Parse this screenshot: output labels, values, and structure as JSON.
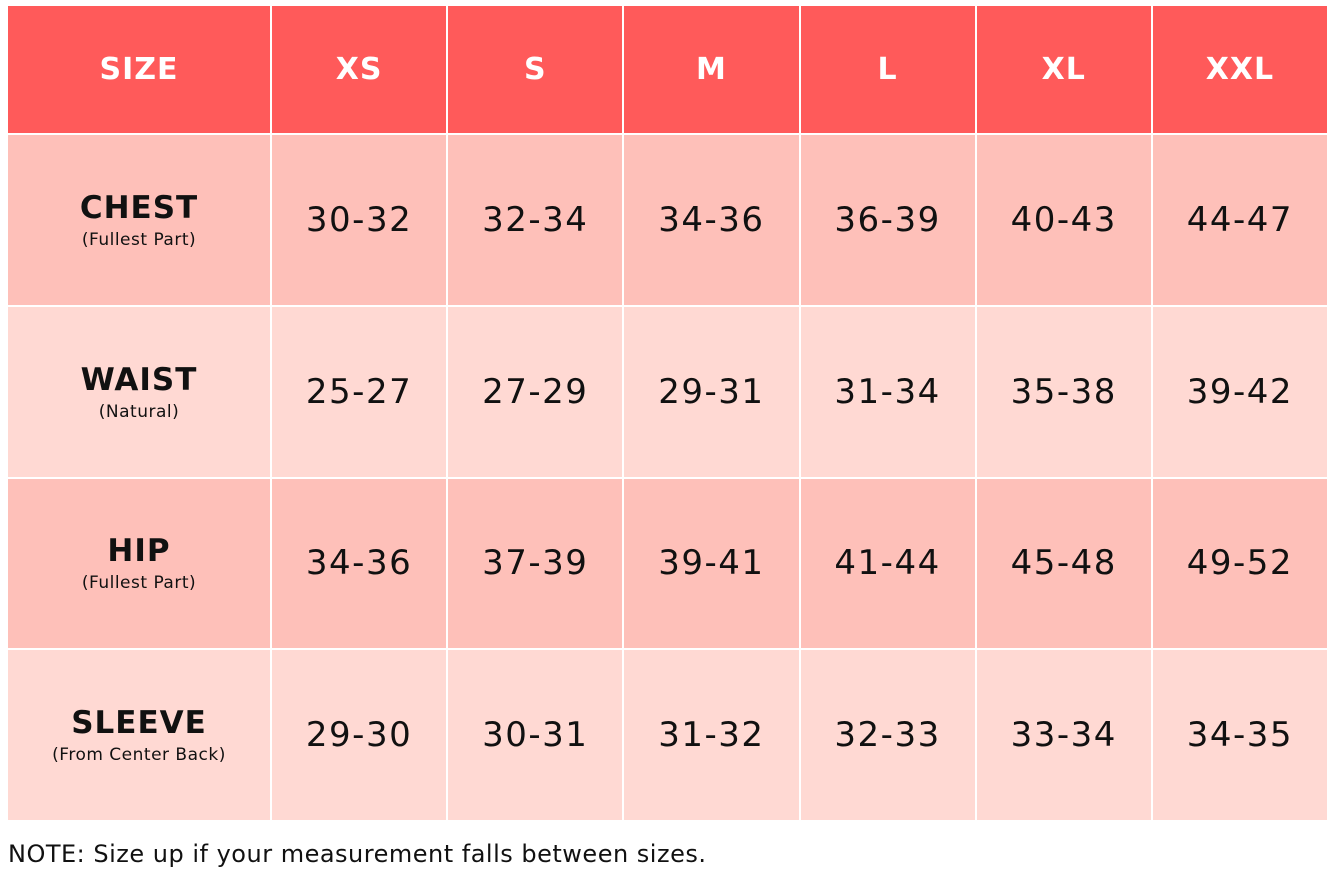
{
  "table": {
    "header": [
      "SIZE",
      "XS",
      "S",
      "M",
      "L",
      "XL",
      "XXL"
    ],
    "rows": [
      {
        "label": "CHEST",
        "sublabel": "(Fullest Part)",
        "values": [
          "30-32",
          "32-34",
          "34-36",
          "36-39",
          "40-43",
          "44-47"
        ]
      },
      {
        "label": "WAIST",
        "sublabel": "(Natural)",
        "values": [
          "25-27",
          "27-29",
          "29-31",
          "31-34",
          "35-38",
          "39-42"
        ]
      },
      {
        "label": "HIP",
        "sublabel": "(Fullest Part)",
        "values": [
          "34-36",
          "37-39",
          "39-41",
          "41-44",
          "45-48",
          "49-52"
        ]
      },
      {
        "label": "SLEEVE",
        "sublabel": "(From Center Back)",
        "values": [
          "29-30",
          "30-31",
          "31-32",
          "32-33",
          "33-34",
          "34-35"
        ]
      }
    ]
  },
  "note": "NOTE: Size up if your measurement falls between sizes."
}
